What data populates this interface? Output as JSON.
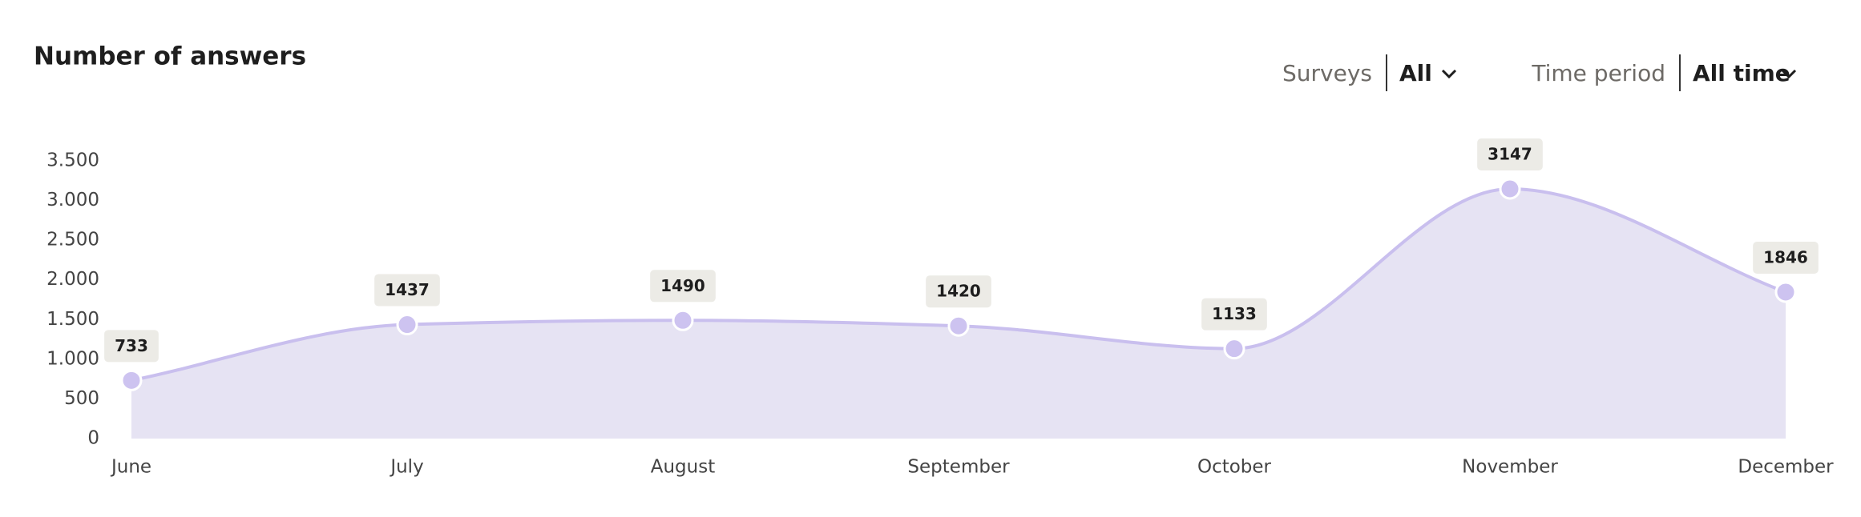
{
  "chart_data": {
    "type": "area",
    "title": "Number of answers",
    "categories": [
      "June",
      "July",
      "August",
      "September",
      "October",
      "November",
      "December"
    ],
    "values": [
      733,
      1437,
      1490,
      1420,
      1133,
      3147,
      1846
    ],
    "color": "#c9bfee",
    "fill": "#e6e3f3",
    "ylim": [
      0,
      3500
    ],
    "yticks": [
      0,
      500,
      {
        "value": 1000,
        "label": "1.000"
      },
      {
        "value": 1500,
        "label": "1.500"
      },
      {
        "value": 2000,
        "label": "2.000"
      },
      {
        "value": 2500,
        "label": "2.500"
      },
      {
        "value": 3000,
        "label": "3.000"
      },
      {
        "value": 3500,
        "label": "3.500"
      }
    ],
    "grid": false
  },
  "filters": [
    {
      "label": "Surveys",
      "value": "All"
    },
    {
      "label": "Time period",
      "value": "All time"
    }
  ]
}
